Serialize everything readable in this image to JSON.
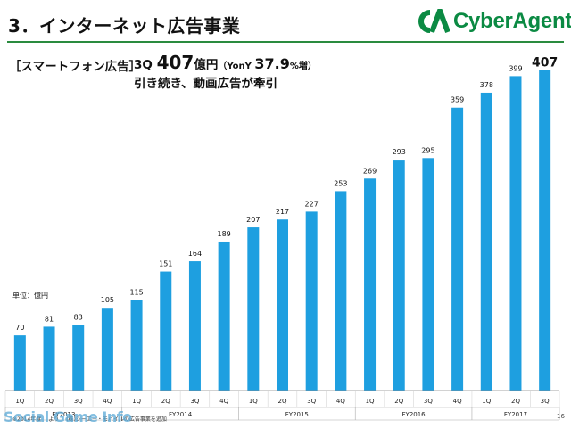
{
  "header": {
    "title": "3．インターネット広告事業",
    "logo_text": "CyberAgent",
    "logo_mark": "CA",
    "brand_color": "#0b8a43",
    "rule_color": "#2a8b3f"
  },
  "section_label": "［スマートフォン広告］",
  "headline": {
    "prefix": "3Q ",
    "value": "407",
    "unit": "億円",
    "paren_open": "（YonY ",
    "growth": "37.9",
    "growth_unit": "%増）"
  },
  "subhead": "引き続き、動画広告が牽引",
  "unit_label": "単位：億円",
  "page_number": "16",
  "footnote": [
    "※2014年度",
    "より",
    "(株)シーエー・モバイルの広告事業を追加"
  ],
  "watermark": "Social Game Info",
  "chart_data": {
    "type": "bar",
    "bar_color": "#1e9fe0",
    "categories": [
      "1Q",
      "2Q",
      "3Q",
      "4Q",
      "1Q",
      "2Q",
      "3Q",
      "4Q",
      "1Q",
      "2Q",
      "3Q",
      "4Q",
      "1Q",
      "2Q",
      "3Q",
      "4Q",
      "1Q",
      "2Q",
      "3Q"
    ],
    "values": [
      70,
      81,
      83,
      105,
      115,
      151,
      164,
      189,
      207,
      217,
      227,
      253,
      269,
      293,
      295,
      359,
      378,
      399,
      407
    ],
    "highlight_last": true,
    "groups": [
      {
        "label": "FY2013",
        "start": 0,
        "count": 4
      },
      {
        "label": "FY2014",
        "start": 4,
        "count": 4
      },
      {
        "label": "FY2015",
        "start": 8,
        "count": 4
      },
      {
        "label": "FY2016",
        "start": 12,
        "count": 4
      },
      {
        "label": "FY2017",
        "start": 16,
        "count": 3
      }
    ],
    "ylim": [
      0,
      430
    ],
    "grid": false,
    "legend": "none"
  }
}
